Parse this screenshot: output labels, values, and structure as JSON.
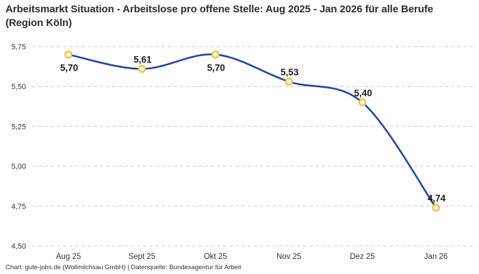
{
  "title": "Arbeitsmarkt Situation - Arbeitslose pro offene Stelle: Aug 2025 - Jan 2026 für alle Berufe (Region Köln)",
  "footer": "Chart: gute-jobs.de (Wollmilchsau GmbH) | Datenquelle: Bundesagentur für Arbeit",
  "chart_data": {
    "type": "line",
    "title": "Arbeitsmarkt Situation - Arbeitslose pro offene Stelle: Aug 2025 - Jan 2026 für alle Berufe (Region Köln)",
    "xlabel": "",
    "ylabel": "",
    "categories": [
      "Aug 25",
      "Sept 25",
      "Okt 25",
      "Nov 25",
      "Dez 25",
      "Jan 26"
    ],
    "values": [
      5.7,
      5.61,
      5.7,
      5.53,
      5.4,
      4.74
    ],
    "value_labels": [
      "5,70",
      "5,61",
      "5,70",
      "5,53",
      "5,40",
      "4,74"
    ],
    "value_label_positions": [
      "below",
      "above",
      "below",
      "above",
      "above",
      "above"
    ],
    "ytick_labels": [
      "5,75",
      "5,50",
      "5,25",
      "5,00",
      "4,75",
      "4,50"
    ],
    "ytick_values": [
      5.75,
      5.5,
      5.25,
      5.0,
      4.75,
      4.5
    ],
    "ylim": [
      4.5,
      5.75
    ],
    "grid": "horizontal-dashed",
    "legend": "none",
    "line_color": "#2343a7",
    "marker_stroke_color": "#f8c23d",
    "marker_fill_color": "#ffffff",
    "grid_color": "#c9c9c9",
    "label_color": "#1a1a1a",
    "tick_color": "#333333"
  }
}
